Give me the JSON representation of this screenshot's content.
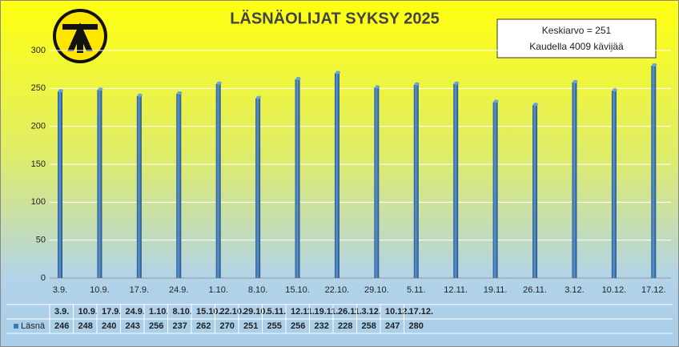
{
  "chart_data": {
    "type": "bar",
    "title": "LÄSNÄOLIJAT SYKSY 2025",
    "annotations": [
      "Keskiarvo = 251",
      "Kaudella 4009 kävijää"
    ],
    "categories": [
      "3.9.",
      "10.9.",
      "17.9.",
      "24.9.",
      "1.10.",
      "8.10.",
      "15.10.",
      "22.10.",
      "29.10.",
      "5.11.",
      "12.11.",
      "19.11.",
      "26.11.",
      "3.12.",
      "10.12.",
      "17.12."
    ],
    "series": [
      {
        "name": "Läsnä",
        "color": "#3f78b4",
        "values": [
          246,
          248,
          240,
          243,
          256,
          237,
          262,
          270,
          251,
          255,
          256,
          232,
          228,
          258,
          247,
          280
        ]
      }
    ],
    "ylim": [
      0,
      300
    ],
    "yticks": [
      0,
      50,
      100,
      150,
      200,
      250,
      300
    ],
    "grid": true
  }
}
